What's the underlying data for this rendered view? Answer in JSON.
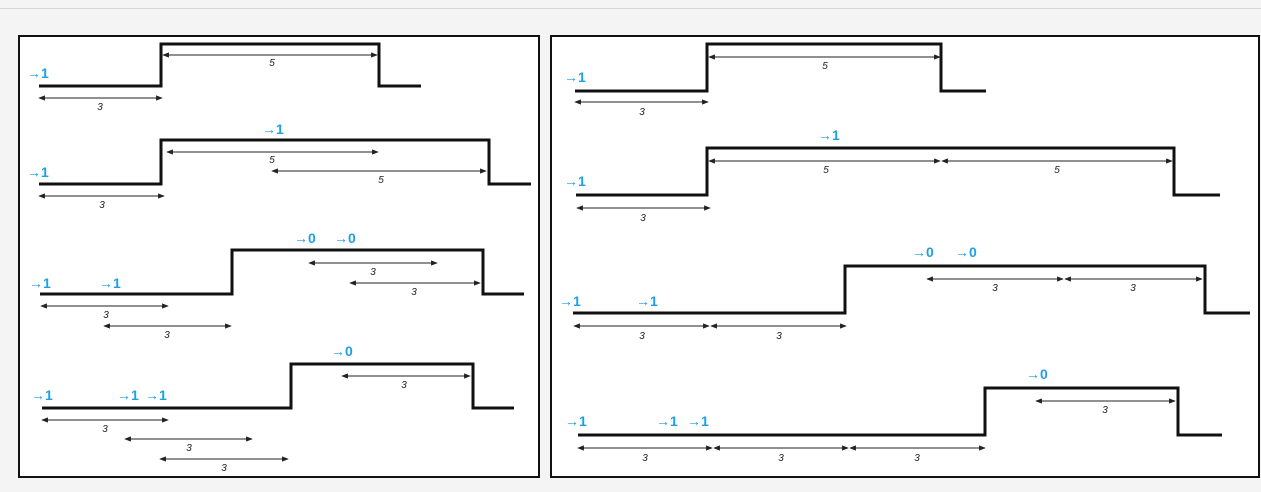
{
  "colors": {
    "signal": "#1ea0e2",
    "waveform": "#111111",
    "panel_border": "#111111",
    "background": "#f4f4f4"
  },
  "left_panel": {
    "rows": [
      {
        "signals": [
          "→1"
        ],
        "dimensions": [
          "3",
          "5"
        ]
      },
      {
        "signals": [
          "→1",
          "→1"
        ],
        "dimensions": [
          "3",
          "5",
          "5"
        ]
      },
      {
        "signals": [
          "→1",
          "→1",
          "→0",
          "→0"
        ],
        "dimensions": [
          "3",
          "3",
          "3",
          "3"
        ]
      },
      {
        "signals": [
          "→1",
          "→1",
          "→1",
          "→0"
        ],
        "dimensions": [
          "3",
          "3",
          "3",
          "3"
        ]
      }
    ]
  },
  "right_panel": {
    "rows": [
      {
        "signals": [
          "→1"
        ],
        "dimensions": [
          "3",
          "5"
        ]
      },
      {
        "signals": [
          "→1",
          "→1"
        ],
        "dimensions": [
          "3",
          "5",
          "5"
        ]
      },
      {
        "signals": [
          "→1",
          "→1",
          "→0",
          "→0"
        ],
        "dimensions": [
          "3",
          "3",
          "3",
          "3"
        ]
      },
      {
        "signals": [
          "→1",
          "→1",
          "→1",
          "→0"
        ],
        "dimensions": [
          "3",
          "3",
          "3",
          "3"
        ]
      }
    ]
  }
}
